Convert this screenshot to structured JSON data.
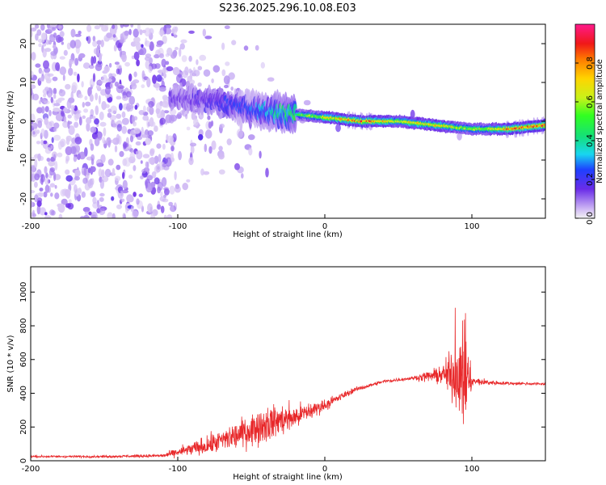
{
  "title": "S236.2025.296.10.08.E03",
  "colors": {
    "snr_line": "#e8282a",
    "frame": "#000000",
    "background": "#ffffff"
  },
  "chart_data": [
    {
      "type": "heatmap",
      "name": "spectrogram",
      "xlabel": "Height of straight line (km)",
      "ylabel": "Frequency (Hz)",
      "xlim": [
        -200,
        150
      ],
      "ylim": [
        -25,
        25
      ],
      "x_ticks": [
        -200,
        -100,
        0,
        100
      ],
      "y_ticks": [
        20,
        10,
        0,
        -10,
        -20
      ],
      "colorbar": {
        "label": "Normalized spectral amplitude",
        "range": [
          0.0,
          1.0
        ],
        "ticks": [
          "0.0",
          "0.2",
          "0.4",
          "0.6",
          "0.8"
        ]
      },
      "ridge": {
        "description_points_x": [
          -100,
          -75,
          -50,
          -25,
          0,
          25,
          50,
          75,
          100,
          125,
          150
        ],
        "frequency_hz": [
          6,
          5,
          3,
          2,
          1,
          0,
          0,
          -1,
          -2,
          -2,
          -1
        ],
        "peak_amplitude": [
          0.15,
          0.2,
          0.3,
          0.5,
          0.7,
          0.9,
          0.7,
          0.8,
          0.6,
          0.85,
          0.9
        ]
      }
    },
    {
      "type": "line",
      "name": "snr",
      "xlabel": "Height of straight line (km)",
      "ylabel": "SNR (10 * v/v)",
      "xlim": [
        -200,
        150
      ],
      "ylim": [
        0,
        1150
      ],
      "x_ticks": [
        -200,
        -100,
        0,
        100
      ],
      "y_ticks": [
        0,
        200,
        400,
        600,
        800,
        1000
      ],
      "envelope": {
        "x": [
          -200,
          -150,
          -110,
          -100,
          -80,
          -60,
          -40,
          -20,
          0,
          20,
          40,
          60,
          80,
          90,
          95,
          100,
          120,
          150
        ],
        "baseline": [
          25,
          25,
          30,
          50,
          90,
          150,
          220,
          260,
          330,
          420,
          470,
          490,
          510,
          520,
          480,
          470,
          460,
          455
        ],
        "noise": [
          10,
          10,
          15,
          40,
          80,
          120,
          160,
          110,
          50,
          20,
          15,
          15,
          80,
          300,
          500,
          40,
          15,
          12
        ]
      }
    }
  ]
}
